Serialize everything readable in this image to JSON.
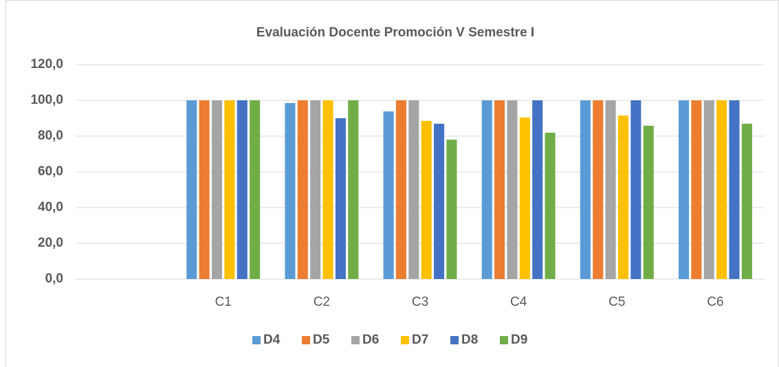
{
  "chart_data": {
    "type": "bar",
    "title": "Evaluación Docente Promoción V Semestre I",
    "categories": [
      null,
      "C1",
      "C2",
      "C3",
      "C4",
      "C5",
      "C6"
    ],
    "series": [
      {
        "name": "D4",
        "color": "#5b9bd5",
        "values": [
          null,
          100,
          98.5,
          93.8,
          100,
          100,
          100
        ]
      },
      {
        "name": "D5",
        "color": "#ed7d31",
        "values": [
          null,
          100,
          100,
          100,
          100,
          100,
          100
        ]
      },
      {
        "name": "D6",
        "color": "#a5a5a5",
        "values": [
          null,
          100,
          100,
          100,
          100,
          100,
          100
        ]
      },
      {
        "name": "D7",
        "color": "#ffc000",
        "values": [
          null,
          100,
          100,
          88.5,
          90.4,
          91.5,
          100
        ]
      },
      {
        "name": "D8",
        "color": "#4472c4",
        "values": [
          null,
          100,
          90,
          86.9,
          100,
          100,
          100
        ]
      },
      {
        "name": "D9",
        "color": "#70ad47",
        "values": [
          null,
          100,
          100,
          78,
          81.9,
          85.8,
          86.9
        ]
      }
    ],
    "ylim": [
      0,
      120
    ],
    "yticks": [
      {
        "value": 0,
        "label": "0,0"
      },
      {
        "value": 20,
        "label": "20,0"
      },
      {
        "value": 40,
        "label": "40,0"
      },
      {
        "value": 60,
        "label": "60,0"
      },
      {
        "value": 80,
        "label": "80,0"
      },
      {
        "value": 100,
        "label": "100,0"
      },
      {
        "value": 120,
        "label": "120,0"
      }
    ],
    "grid": true,
    "legend": "bottom"
  }
}
